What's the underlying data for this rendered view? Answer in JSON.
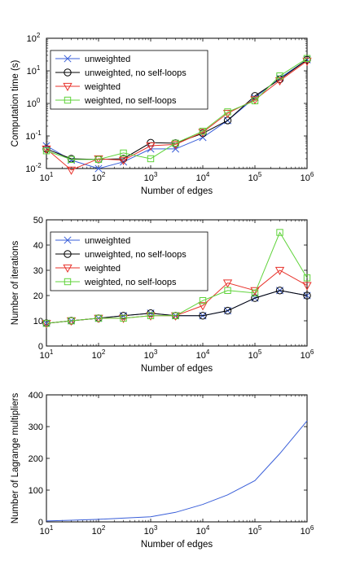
{
  "chart_data": [
    {
      "type": "line",
      "xscale": "log",
      "yscale": "log",
      "xlabel": "Number of edges",
      "ylabel": "Computation time (s)",
      "xlim": [
        10,
        1000000
      ],
      "ylim": [
        0.01,
        100
      ],
      "xticks": [
        10,
        100,
        1000,
        10000,
        100000,
        1000000
      ],
      "xtick_labels": [
        {
          "b": "10",
          "e": "1"
        },
        {
          "b": "10",
          "e": "2"
        },
        {
          "b": "10",
          "e": "3"
        },
        {
          "b": "10",
          "e": "4"
        },
        {
          "b": "10",
          "e": "5"
        },
        {
          "b": "10",
          "e": "6"
        }
      ],
      "yticks": [
        0.01,
        0.1,
        1,
        10,
        100
      ],
      "ytick_labels": [
        {
          "b": "10",
          "e": "-2"
        },
        {
          "b": "10",
          "e": "-1"
        },
        {
          "b": "10",
          "e": "0"
        },
        {
          "b": "10",
          "e": "1"
        },
        {
          "b": "10",
          "e": "2"
        }
      ],
      "grid": false,
      "legend": "top-left",
      "x": [
        10,
        30,
        100,
        300,
        1000,
        3000,
        10000,
        30000,
        100000,
        300000,
        1000000
      ],
      "series": [
        {
          "name": "unweighted",
          "color": "#3a5fd9",
          "marker": "x",
          "values": [
            0.05,
            0.018,
            0.01,
            0.016,
            0.04,
            0.04,
            0.09,
            0.3,
            1.5,
            6,
            22
          ]
        },
        {
          "name": "unweighted, no self-loops",
          "color": "#000000",
          "marker": "circle",
          "values": [
            0.04,
            0.02,
            0.019,
            0.02,
            0.062,
            0.06,
            0.12,
            0.3,
            1.7,
            5.5,
            22
          ]
        },
        {
          "name": "weighted",
          "color": "#e8312a",
          "marker": "triangle",
          "values": [
            0.04,
            0.009,
            0.02,
            0.018,
            0.05,
            0.055,
            0.13,
            0.5,
            1.3,
            5,
            20
          ]
        },
        {
          "name": "weighted, no self-loops",
          "color": "#5fd33a",
          "marker": "square",
          "values": [
            0.035,
            0.019,
            0.019,
            0.03,
            0.02,
            0.06,
            0.14,
            0.55,
            1.2,
            7,
            24
          ]
        }
      ]
    },
    {
      "type": "line",
      "xscale": "log",
      "yscale": "linear",
      "xlabel": "Number of edges",
      "ylabel": "Number of iterations",
      "xlim": [
        10,
        1000000
      ],
      "ylim": [
        0,
        50
      ],
      "xticks": [
        10,
        100,
        1000,
        10000,
        100000,
        1000000
      ],
      "xtick_labels": [
        {
          "b": "10",
          "e": "1"
        },
        {
          "b": "10",
          "e": "2"
        },
        {
          "b": "10",
          "e": "3"
        },
        {
          "b": "10",
          "e": "4"
        },
        {
          "b": "10",
          "e": "5"
        },
        {
          "b": "10",
          "e": "6"
        }
      ],
      "yticks": [
        0,
        10,
        20,
        30,
        40,
        50
      ],
      "ytick_labels": [
        "0",
        "10",
        "20",
        "30",
        "40",
        "50"
      ],
      "grid": false,
      "legend": "top-left",
      "x": [
        10,
        30,
        100,
        300,
        1000,
        3000,
        10000,
        30000,
        100000,
        300000,
        1000000
      ],
      "series": [
        {
          "name": "unweighted",
          "color": "#3a5fd9",
          "marker": "x",
          "values": [
            9,
            10,
            11,
            12,
            13,
            12,
            12,
            14,
            19,
            22,
            20
          ]
        },
        {
          "name": "unweighted, no self-loops",
          "color": "#000000",
          "marker": "circle",
          "values": [
            9,
            10,
            11,
            12,
            13,
            12,
            12,
            14,
            19,
            22,
            20
          ]
        },
        {
          "name": "weighted",
          "color": "#e8312a",
          "marker": "triangle",
          "values": [
            9,
            10,
            11,
            11,
            12,
            12,
            16,
            25,
            22,
            30,
            24
          ]
        },
        {
          "name": "weighted, no self-loops",
          "color": "#5fd33a",
          "marker": "square",
          "values": [
            9,
            10,
            11,
            11,
            12,
            12,
            18,
            22,
            21,
            45,
            27
          ]
        }
      ]
    },
    {
      "type": "line",
      "xscale": "log",
      "yscale": "linear",
      "xlabel": "Number of edges",
      "ylabel": "Number of Lagrange multipliers",
      "xlim": [
        10,
        1000000
      ],
      "ylim": [
        0,
        400
      ],
      "xticks": [
        10,
        100,
        1000,
        10000,
        100000,
        1000000
      ],
      "xtick_labels": [
        {
          "b": "10",
          "e": "1"
        },
        {
          "b": "10",
          "e": "2"
        },
        {
          "b": "10",
          "e": "3"
        },
        {
          "b": "10",
          "e": "4"
        },
        {
          "b": "10",
          "e": "5"
        },
        {
          "b": "10",
          "e": "6"
        }
      ],
      "yticks": [
        0,
        100,
        200,
        300,
        400
      ],
      "ytick_labels": [
        "0",
        "100",
        "200",
        "300",
        "400"
      ],
      "grid": false,
      "legend": "none",
      "x": [
        10,
        30,
        100,
        300,
        1000,
        3000,
        10000,
        30000,
        100000,
        300000,
        1000000
      ],
      "series": [
        {
          "color": "#3a5fd9",
          "marker": "none",
          "values": [
            3,
            5,
            8,
            12,
            16,
            30,
            55,
            85,
            130,
            215,
            318
          ]
        }
      ]
    }
  ]
}
